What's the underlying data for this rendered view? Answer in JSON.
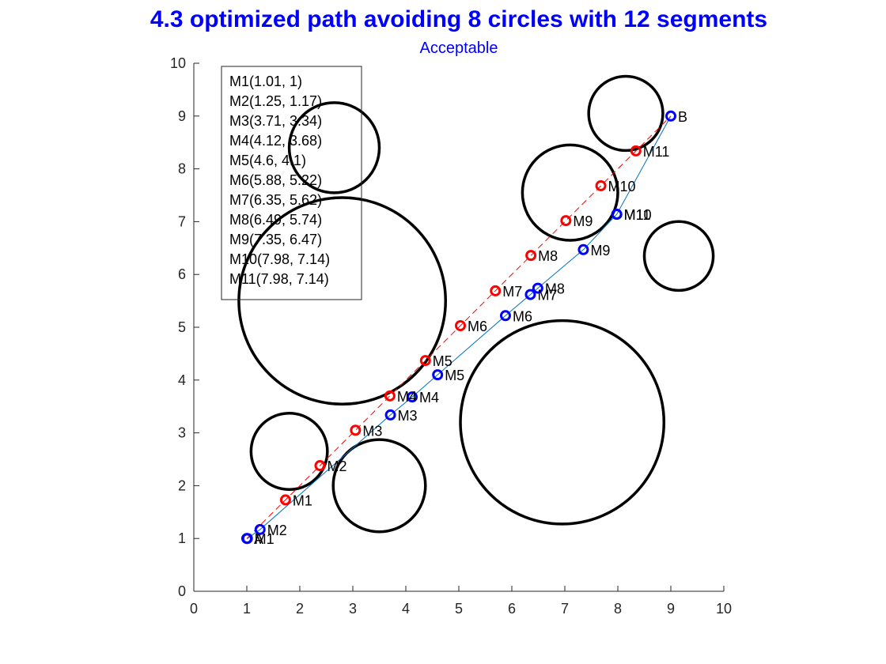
{
  "chart_data": {
    "type": "scatter",
    "title": "4.3 optimized path avoiding 8 circles with 12 segments",
    "subtitle": "Acceptable",
    "xlabel": "",
    "ylabel": "",
    "xlim": [
      0,
      10
    ],
    "ylim": [
      0,
      10
    ],
    "xticks": [
      "0",
      "1",
      "2",
      "3",
      "4",
      "5",
      "6",
      "7",
      "8",
      "9",
      "10"
    ],
    "yticks": [
      "0",
      "1",
      "2",
      "3",
      "4",
      "5",
      "6",
      "7",
      "8",
      "9",
      "10"
    ],
    "grid": false,
    "obstacles": [
      {
        "cx": 2.65,
        "cy": 8.4,
        "r": 0.85
      },
      {
        "cx": 2.8,
        "cy": 5.5,
        "r": 1.95
      },
      {
        "cx": 1.8,
        "cy": 2.65,
        "r": 0.72
      },
      {
        "cx": 3.5,
        "cy": 2.0,
        "r": 0.87
      },
      {
        "cx": 7.1,
        "cy": 7.55,
        "r": 0.9
      },
      {
        "cx": 8.15,
        "cy": 9.05,
        "r": 0.7
      },
      {
        "cx": 9.15,
        "cy": 6.35,
        "r": 0.65
      },
      {
        "cx": 6.95,
        "cy": 3.2,
        "r": 1.92
      }
    ],
    "series": [
      {
        "marker_color": "#0000ff",
        "line_color": "#0072bd",
        "line_style": "solid",
        "points": [
          {
            "label": "A",
            "x": 1.0,
            "y": 1.0
          },
          {
            "label": "M1",
            "x": 1.01,
            "y": 1.0
          },
          {
            "label": "M2",
            "x": 1.25,
            "y": 1.17
          },
          {
            "label": "M3",
            "x": 3.71,
            "y": 3.34
          },
          {
            "label": "M4",
            "x": 4.12,
            "y": 3.68
          },
          {
            "label": "M5",
            "x": 4.6,
            "y": 4.1
          },
          {
            "label": "M6",
            "x": 5.88,
            "y": 5.22
          },
          {
            "label": "M7",
            "x": 6.35,
            "y": 5.62
          },
          {
            "label": "M8",
            "x": 6.49,
            "y": 5.74
          },
          {
            "label": "M9",
            "x": 7.35,
            "y": 6.47
          },
          {
            "label": "M10",
            "x": 7.98,
            "y": 7.14
          },
          {
            "label": "M11",
            "x": 7.98,
            "y": 7.14
          },
          {
            "label": "B",
            "x": 9.0,
            "y": 9.0
          }
        ]
      },
      {
        "marker_color": "#ff0000",
        "line_color": "#ff0000",
        "line_style": "dashed",
        "points": [
          {
            "label": "",
            "x": 1.0,
            "y": 1.0
          },
          {
            "label": "M1",
            "x": 1.73,
            "y": 1.73
          },
          {
            "label": "M2",
            "x": 2.38,
            "y": 2.38
          },
          {
            "label": "M3",
            "x": 3.05,
            "y": 3.05
          },
          {
            "label": "M4",
            "x": 3.7,
            "y": 3.7
          },
          {
            "label": "M5",
            "x": 4.37,
            "y": 4.37
          },
          {
            "label": "M6",
            "x": 5.03,
            "y": 5.03
          },
          {
            "label": "M7",
            "x": 5.69,
            "y": 5.69
          },
          {
            "label": "M8",
            "x": 6.36,
            "y": 6.36
          },
          {
            "label": "M9",
            "x": 7.02,
            "y": 7.02
          },
          {
            "label": "M10",
            "x": 7.68,
            "y": 7.68
          },
          {
            "label": "M11",
            "x": 8.34,
            "y": 8.34
          },
          {
            "label": "",
            "x": 9.0,
            "y": 9.0
          }
        ]
      }
    ],
    "legend_position": "top-left",
    "legend_entries": [
      "M1(1.01, 1)",
      "M2(1.25, 1.17)",
      "M3(3.71, 3.34)",
      "M4(4.12, 3.68)",
      "M5(4.6, 4.1)",
      "M6(5.88, 5.22)",
      "M7(6.35, 5.62)",
      "M8(6.49, 5.74)",
      "M9(7.35, 6.47)",
      "M10(7.98, 7.14)",
      "M11(7.98, 7.14)"
    ]
  }
}
